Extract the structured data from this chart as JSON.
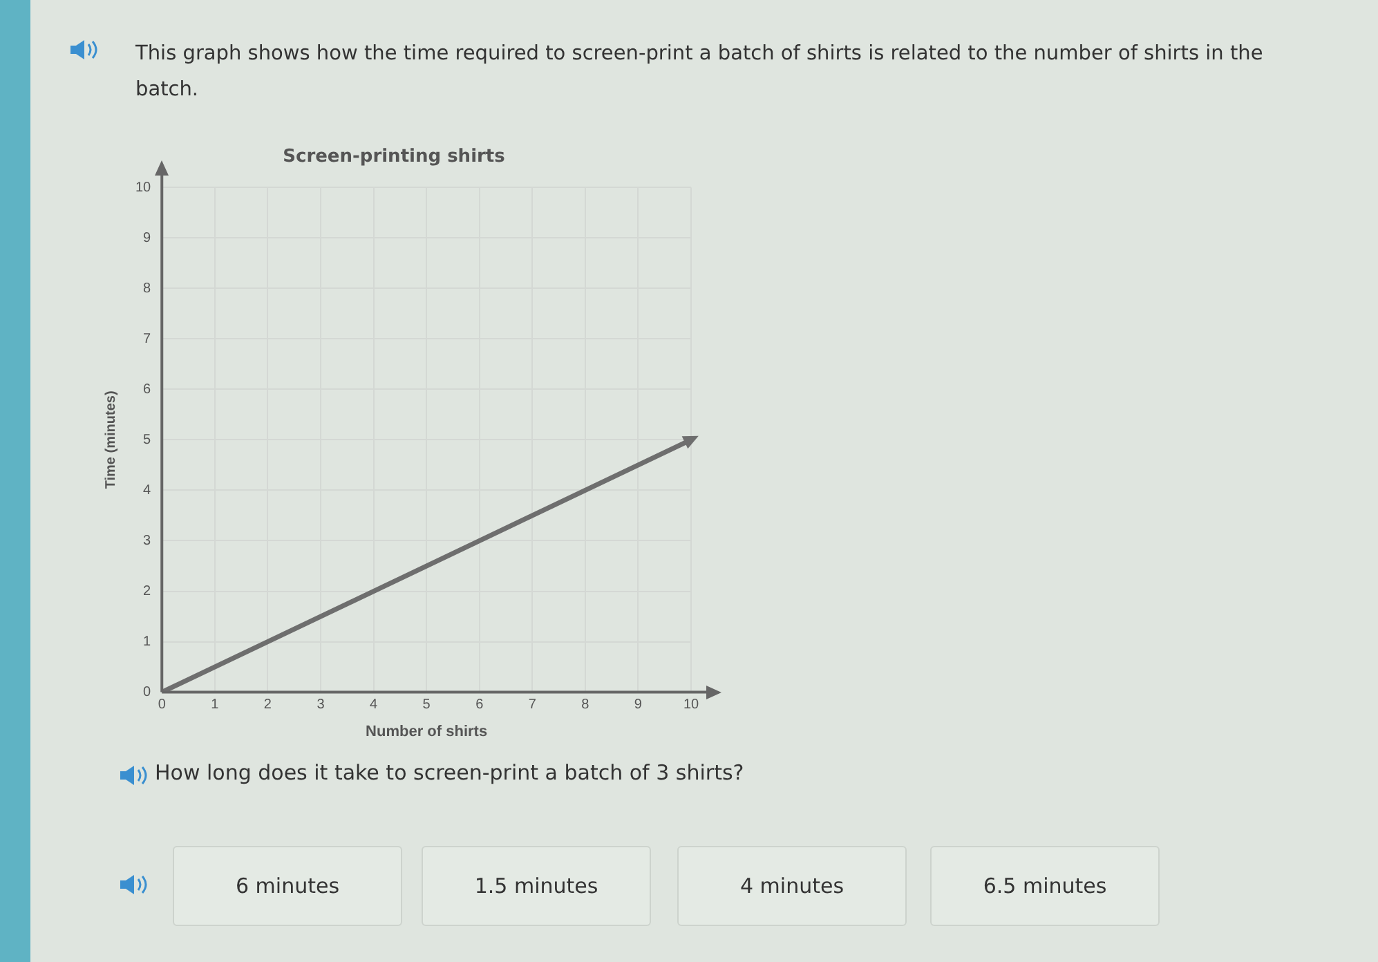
{
  "chart_data": {
    "type": "line",
    "title": "Screen-printing shirts",
    "xlabel": "Number of shirts",
    "ylabel": "Time (minutes)",
    "x": [
      0,
      10
    ],
    "series": [
      {
        "color": "#6e6e6e",
        "values": [
          0,
          5
        ]
      }
    ],
    "xlim": [
      0,
      10
    ],
    "ylim": [
      0,
      10
    ],
    "xticks": [
      0,
      1,
      2,
      3,
      4,
      5,
      6,
      7,
      8,
      9,
      10
    ],
    "yticks": [
      0,
      1,
      2,
      3,
      4,
      5,
      6,
      7,
      8,
      9,
      10
    ],
    "grid": true,
    "legend": false,
    "line_style": "solid",
    "annotations": [
      "This graph shows how the time required to screen-print a batch of shirts is related to the number of shirts in the batch.",
      "How long does it take to screen-print a batch of 3 shirts?",
      "6 minutes",
      "1.5 minutes",
      "4 minutes",
      "6.5 minutes"
    ]
  }
}
